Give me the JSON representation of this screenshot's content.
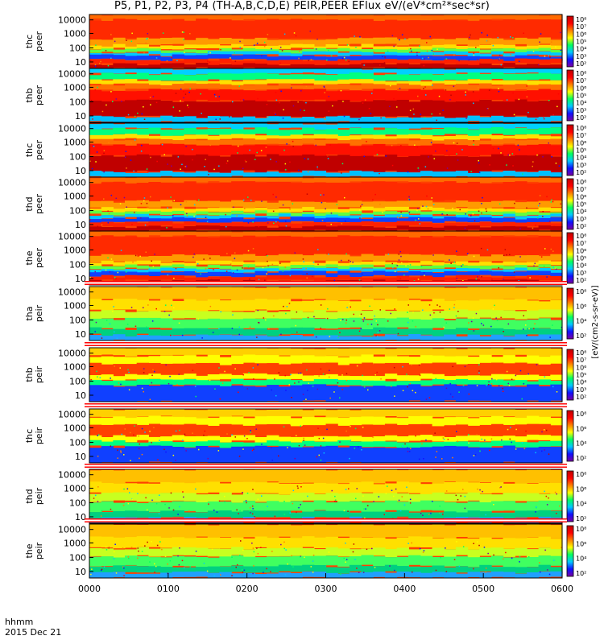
{
  "figure": {
    "title": "P5, P1, P2, P3, P4 (TH-A,B,C,D,E) PEIR,PEER EFlux eV/(eV*cm²*sec*sr)",
    "time_label": "hhmm",
    "date_label": "2015 Dec 21",
    "colorbar_label": "[eV/(cm2-s-sr-eV)]"
  },
  "chart_data": {
    "type": "heatmap",
    "x_axis": {
      "ticks": [
        "0000",
        "0100",
        "0200",
        "0300",
        "0400",
        "0500",
        "0600"
      ],
      "range_hours": [
        0,
        6
      ]
    },
    "y_scale": "log",
    "colormap": [
      "#7a00a0",
      "#1010ff",
      "#00c8ff",
      "#00ff60",
      "#ffff00",
      "#ff8000",
      "#ff0000",
      "#c00000"
    ],
    "panels": [
      {
        "label": [
          "thc",
          "peer"
        ],
        "yticks": [
          "10000",
          "1000",
          "100",
          "10"
        ],
        "cbar_ticks": [
          "10⁸",
          "10⁷",
          "10⁶",
          "10⁵",
          "10⁴",
          "10³",
          "10²"
        ],
        "kind": "peer"
      },
      {
        "label": [
          "thb",
          "peer"
        ],
        "yticks": [
          "10000",
          "1000",
          "100",
          "10"
        ],
        "cbar_ticks": [
          "10⁸",
          "10⁷",
          "10⁶",
          "10⁵",
          "10⁴",
          "10³",
          "10²"
        ],
        "kind": "peer"
      },
      {
        "label": [
          "thc",
          "peer"
        ],
        "yticks": [
          "10000",
          "1000",
          "100",
          "10"
        ],
        "cbar_ticks": [
          "10⁸",
          "10⁷",
          "10⁶",
          "10⁵",
          "10⁴",
          "10³",
          "10²"
        ],
        "kind": "peer"
      },
      {
        "label": [
          "thd",
          "peer"
        ],
        "yticks": [
          "10000",
          "1000",
          "100",
          "10"
        ],
        "cbar_ticks": [
          "10⁸",
          "10⁷",
          "10⁶",
          "10⁵",
          "10⁴",
          "10³",
          "10²"
        ],
        "kind": "peer"
      },
      {
        "label": [
          "the",
          "peer"
        ],
        "yticks": [
          "10000",
          "1000",
          "100",
          "10"
        ],
        "cbar_ticks": [
          "10⁸",
          "10⁷",
          "10⁶",
          "10⁵",
          "10⁴",
          "10³",
          "10²"
        ],
        "kind": "peer"
      },
      {
        "label": [
          "tha",
          "peir"
        ],
        "yticks": [
          "10000",
          "1000",
          "100",
          "10"
        ],
        "cbar_ticks": [
          "10⁸",
          "10⁶",
          "10⁴",
          "10²"
        ],
        "kind": "peir"
      },
      {
        "label": [
          "thb",
          "peir"
        ],
        "yticks": [
          "10000",
          "1000",
          "100",
          "10"
        ],
        "cbar_ticks": [
          "10⁸",
          "10⁷",
          "10⁶",
          "10⁵",
          "10⁴",
          "10³",
          "10²"
        ],
        "kind": "peir"
      },
      {
        "label": [
          "thc",
          "peir"
        ],
        "yticks": [
          "10000",
          "1000",
          "100",
          "10"
        ],
        "cbar_ticks": [
          "10⁸",
          "10⁶",
          "10⁴",
          "10²"
        ],
        "kind": "peir"
      },
      {
        "label": [
          "thd",
          "peir"
        ],
        "yticks": [
          "10000",
          "1000",
          "100",
          "10"
        ],
        "cbar_ticks": [
          "10⁸",
          "10⁶",
          "10⁴",
          "10²"
        ],
        "kind": "peir"
      },
      {
        "label": [
          "the",
          "peir"
        ],
        "yticks": [
          "10000",
          "1000",
          "100",
          "10"
        ],
        "cbar_ticks": [
          "10⁸",
          "10⁶",
          "10⁴",
          "10²"
        ],
        "kind": "peir"
      }
    ]
  }
}
